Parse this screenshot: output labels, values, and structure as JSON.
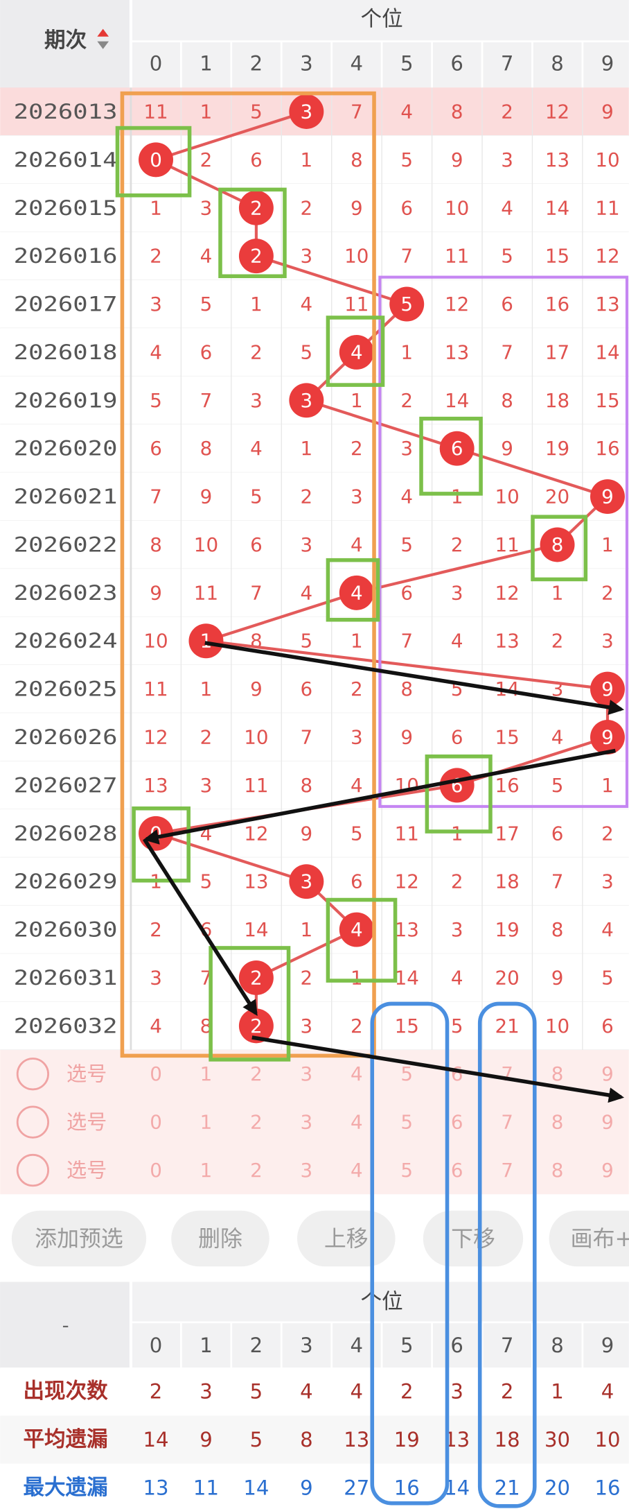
{
  "header": {
    "sort_label": "期次",
    "group": "个位",
    "digits": [
      0,
      1,
      2,
      3,
      4,
      5,
      6,
      7,
      8,
      9
    ]
  },
  "rows": [
    {
      "period": "2026013",
      "values": [
        11,
        1,
        5,
        3,
        7,
        4,
        8,
        2,
        12,
        9
      ],
      "ball": 3
    },
    {
      "period": "2026014",
      "values": [
        0,
        2,
        6,
        1,
        8,
        5,
        9,
        3,
        13,
        10
      ],
      "ball": 0
    },
    {
      "period": "2026015",
      "values": [
        1,
        3,
        2,
        2,
        9,
        6,
        10,
        4,
        14,
        11
      ],
      "ball": 2
    },
    {
      "period": "2026016",
      "values": [
        2,
        4,
        2,
        3,
        10,
        7,
        11,
        5,
        15,
        12
      ],
      "ball": 2
    },
    {
      "period": "2026017",
      "values": [
        3,
        5,
        1,
        4,
        11,
        5,
        12,
        6,
        16,
        13
      ],
      "ball": 5
    },
    {
      "period": "2026018",
      "values": [
        4,
        6,
        2,
        5,
        4,
        1,
        13,
        7,
        17,
        14
      ],
      "ball": 4
    },
    {
      "period": "2026019",
      "values": [
        5,
        7,
        3,
        3,
        1,
        2,
        14,
        8,
        18,
        15
      ],
      "ball": 3
    },
    {
      "period": "2026020",
      "values": [
        6,
        8,
        4,
        1,
        2,
        3,
        6,
        9,
        19,
        16
      ],
      "ball": 6
    },
    {
      "period": "2026021",
      "values": [
        7,
        9,
        5,
        2,
        3,
        4,
        1,
        10,
        20,
        9
      ],
      "ball": 9
    },
    {
      "period": "2026022",
      "values": [
        8,
        10,
        6,
        3,
        4,
        5,
        2,
        11,
        8,
        1
      ],
      "ball": 8
    },
    {
      "period": "2026023",
      "values": [
        9,
        11,
        7,
        4,
        4,
        6,
        3,
        12,
        1,
        2
      ],
      "ball": 4
    },
    {
      "period": "2026024",
      "values": [
        10,
        1,
        8,
        5,
        1,
        7,
        4,
        13,
        2,
        3
      ],
      "ball": 1
    },
    {
      "period": "2026025",
      "values": [
        11,
        1,
        9,
        6,
        2,
        8,
        5,
        14,
        3,
        9
      ],
      "ball": 9
    },
    {
      "period": "2026026",
      "values": [
        12,
        2,
        10,
        7,
        3,
        9,
        6,
        15,
        4,
        9
      ],
      "ball": 9
    },
    {
      "period": "2026027",
      "values": [
        13,
        3,
        11,
        8,
        4,
        10,
        6,
        16,
        5,
        1
      ],
      "ball": 6
    },
    {
      "period": "2026028",
      "values": [
        0,
        4,
        12,
        9,
        5,
        11,
        1,
        17,
        6,
        2
      ],
      "ball": 0
    },
    {
      "period": "2026029",
      "values": [
        1,
        5,
        13,
        3,
        6,
        12,
        2,
        18,
        7,
        3
      ],
      "ball": 3
    },
    {
      "period": "2026030",
      "values": [
        2,
        6,
        14,
        1,
        4,
        13,
        3,
        19,
        8,
        4
      ],
      "ball": 4
    },
    {
      "period": "2026031",
      "values": [
        3,
        7,
        2,
        2,
        1,
        14,
        4,
        20,
        9,
        5
      ],
      "ball": 2
    },
    {
      "period": "2026032",
      "values": [
        4,
        8,
        2,
        3,
        2,
        15,
        5,
        21,
        10,
        6
      ],
      "ball": 2
    }
  ],
  "select_rows": [
    {
      "label": "选号",
      "digits": [
        0,
        1,
        2,
        3,
        4,
        5,
        6,
        7,
        8,
        9
      ]
    },
    {
      "label": "选号",
      "digits": [
        0,
        1,
        2,
        3,
        4,
        5,
        6,
        7,
        8,
        9
      ]
    },
    {
      "label": "选号",
      "digits": [
        0,
        1,
        2,
        3,
        4,
        5,
        6,
        7,
        8,
        9
      ]
    }
  ],
  "buttons": [
    "添加预选",
    "删除",
    "上移",
    "下移",
    "画布+"
  ],
  "stats": {
    "corner": "-",
    "group": "个位",
    "digits": [
      0,
      1,
      2,
      3,
      4,
      5,
      6,
      7,
      8,
      9
    ],
    "rows": [
      {
        "label": "出现次数",
        "values": [
          2,
          3,
          5,
          4,
          4,
          2,
          3,
          2,
          1,
          4
        ]
      },
      {
        "label": "平均遗漏",
        "values": [
          14,
          9,
          5,
          8,
          13,
          19,
          13,
          18,
          30,
          10
        ]
      },
      {
        "label": "最大遗漏",
        "values": [
          13,
          11,
          14,
          9,
          27,
          16,
          14,
          21,
          20,
          16
        ]
      }
    ]
  }
}
